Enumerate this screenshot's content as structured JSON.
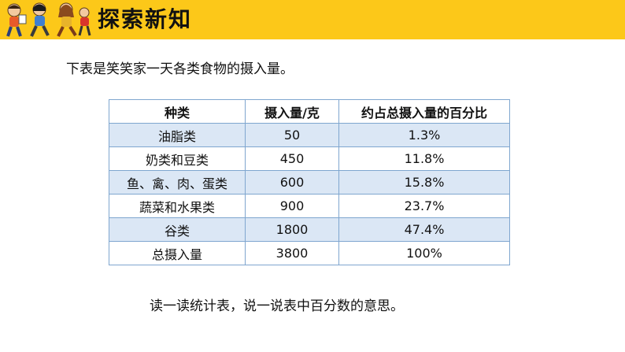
{
  "banner": {
    "title": "探索新知"
  },
  "intro_text": "下表是笑笑家一天各类食物的摄入量。",
  "table": {
    "headers": [
      "种类",
      "摄入量/克",
      "约占总摄入量的百分比"
    ],
    "rows": [
      [
        "油脂类",
        "50",
        "1.3%"
      ],
      [
        "奶类和豆类",
        "450",
        "11.8%"
      ],
      [
        "鱼、禽、肉、蛋类",
        "600",
        "15.8%"
      ],
      [
        "蔬菜和水果类",
        "900",
        "23.7%"
      ],
      [
        "谷类",
        "1800",
        "47.4%"
      ],
      [
        "总摄入量",
        "3800",
        "100%"
      ]
    ]
  },
  "prompt_text": "读一读统计表，说一说表中百分数的意思。",
  "colors": {
    "banner": "#fcc819",
    "row_shade": "#dbe7f5",
    "table_border": "#7fa6cf"
  },
  "icons": [
    "students-running-illustration"
  ]
}
